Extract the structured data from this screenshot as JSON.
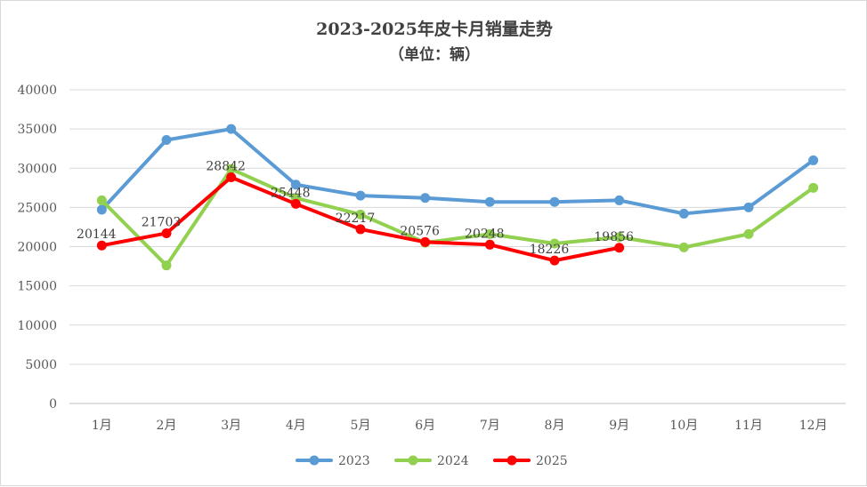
{
  "chart_data": {
    "type": "line",
    "title": "2023-2025年皮卡月销量走势",
    "subtitle": "（单位：辆）",
    "xlabel": "",
    "ylabel": "",
    "categories": [
      "1月",
      "2月",
      "3月",
      "4月",
      "5月",
      "6月",
      "7月",
      "8月",
      "9月",
      "10月",
      "11月",
      "12月"
    ],
    "ylim": [
      0,
      40000
    ],
    "yticks": [
      0,
      5000,
      10000,
      15000,
      20000,
      25000,
      30000,
      35000,
      40000
    ],
    "grid": true,
    "legend_position": "bottom",
    "series": [
      {
        "name": "2023",
        "color": "#5b9bd5",
        "values": [
          24700,
          33600,
          35000,
          27900,
          26500,
          26200,
          25700,
          25700,
          25900,
          24200,
          25000,
          31000
        ]
      },
      {
        "name": "2024",
        "color": "#92d050",
        "values": [
          25900,
          17600,
          29900,
          26200,
          24100,
          20500,
          21600,
          20400,
          21200,
          19900,
          21600,
          27500
        ]
      },
      {
        "name": "2025",
        "color": "#ff0000",
        "values": [
          20144,
          21703,
          28842,
          25448,
          22217,
          20576,
          20248,
          18226,
          19856,
          null,
          null,
          null
        ]
      }
    ],
    "data_labels": [
      {
        "series": 2,
        "index": 0,
        "text": "20144"
      },
      {
        "series": 2,
        "index": 1,
        "text": "21703"
      },
      {
        "series": 2,
        "index": 2,
        "text": "28842"
      },
      {
        "series": 2,
        "index": 3,
        "text": "25448"
      },
      {
        "series": 2,
        "index": 4,
        "text": "22217"
      },
      {
        "series": 2,
        "index": 5,
        "text": "20576"
      },
      {
        "series": 2,
        "index": 6,
        "text": "20248"
      },
      {
        "series": 2,
        "index": 7,
        "text": "18226"
      },
      {
        "series": 2,
        "index": 8,
        "text": "19856"
      }
    ],
    "colors": {
      "grid": "#d9d9d9",
      "axis": "#bfbfbf",
      "frame": "#d9d9d9"
    }
  }
}
